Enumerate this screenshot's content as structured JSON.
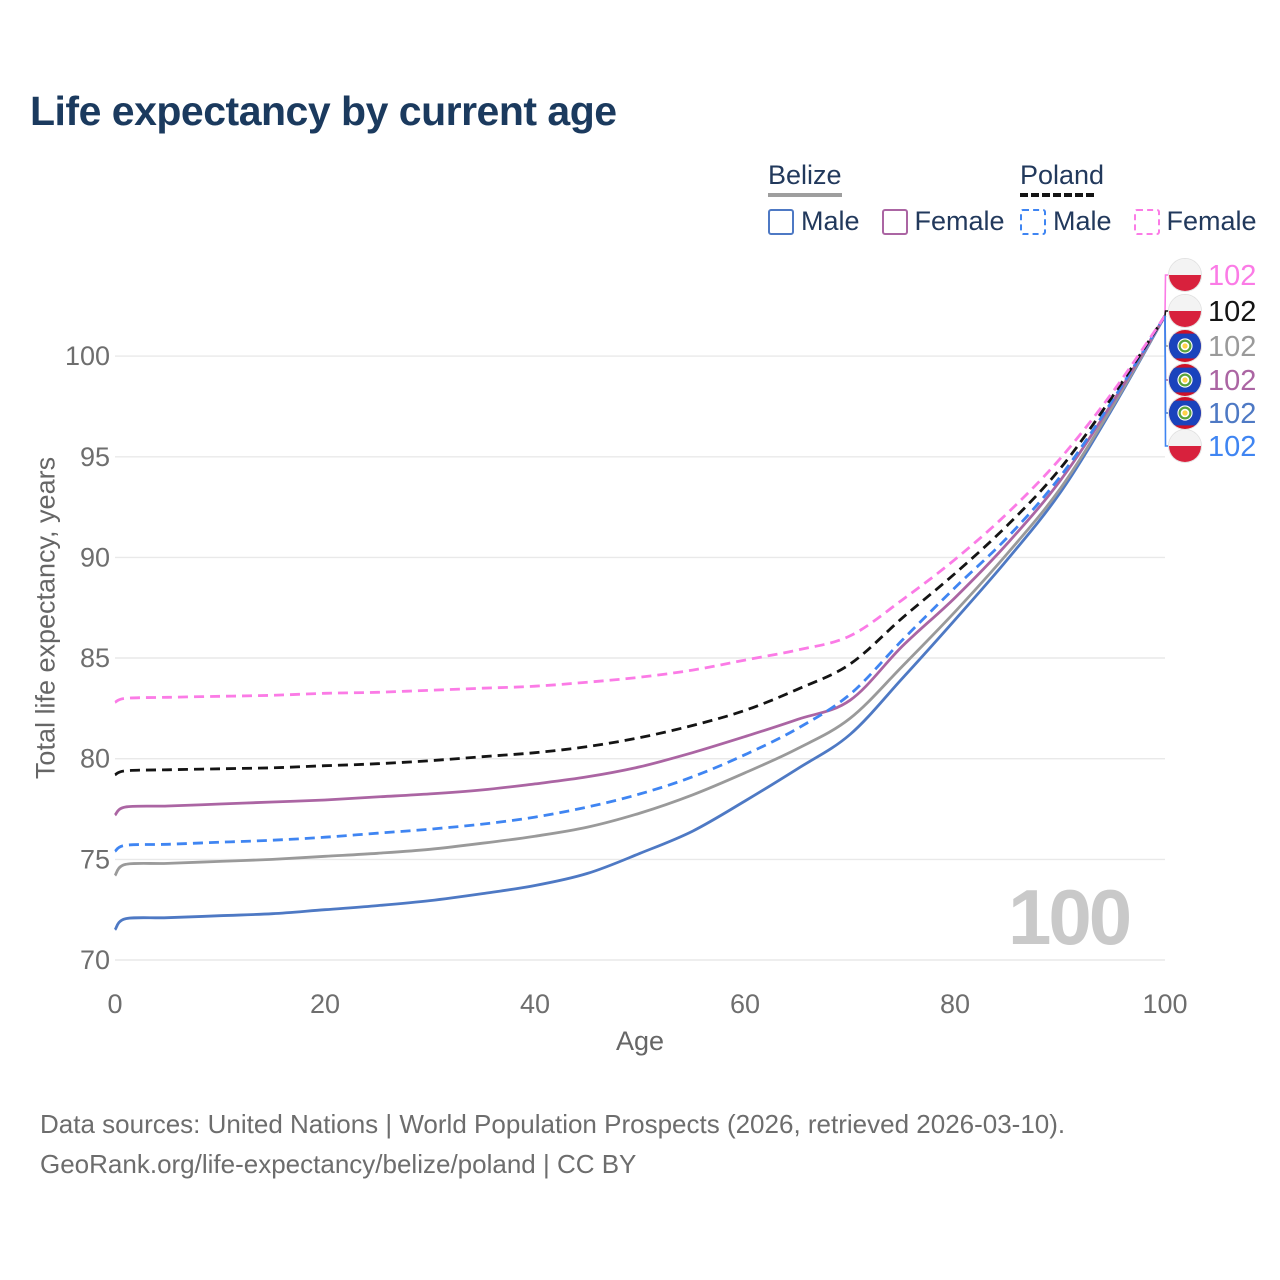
{
  "title": "Life expectancy by current age",
  "watermark_age": "100",
  "legend": {
    "groups": [
      {
        "country": "Belize",
        "line_style": "solid",
        "underline_color": "#9e9e9e",
        "male_label": "Male",
        "female_label": "Female",
        "male_color": "#4e79c4",
        "female_color": "#ab65a3"
      },
      {
        "country": "Poland",
        "line_style": "dashed",
        "underline_color": "#141414",
        "male_label": "Male",
        "female_label": "Female",
        "male_color": "#3f85f2",
        "female_color": "#fb7be6"
      }
    ]
  },
  "footer": {
    "sources_line": "Data sources: United Nations | World Population Prospects (2026, retrieved 2026-03-10).",
    "attribution_line": "GeoRank.org/life-expectancy/belize/poland | CC BY"
  },
  "chart_data": {
    "type": "line",
    "title": "Life expectancy by current age",
    "xlabel": "Age",
    "ylabel": "Total life expectancy, years",
    "x_ticks": [
      0,
      20,
      40,
      60,
      80,
      100
    ],
    "y_ticks": [
      70,
      75,
      80,
      85,
      90,
      95,
      100
    ],
    "xlim": [
      0,
      100
    ],
    "ylim": [
      69,
      103
    ],
    "grid": "horizontal",
    "legend_position": "top-right",
    "ages": [
      0,
      1,
      5,
      10,
      15,
      20,
      25,
      30,
      35,
      40,
      45,
      50,
      55,
      60,
      65,
      70,
      75,
      80,
      85,
      90,
      95,
      100
    ],
    "series": [
      {
        "id": "poland-female",
        "name": "Poland Female",
        "country": "Poland",
        "sex": "Female",
        "flag": "poland",
        "color": "#fb7be6",
        "dashed": true,
        "end_label": "102",
        "values": [
          82.8,
          83.0,
          83.05,
          83.1,
          83.15,
          83.25,
          83.3,
          83.4,
          83.5,
          83.6,
          83.8,
          84.05,
          84.4,
          84.9,
          85.4,
          86.1,
          87.9,
          89.9,
          92.2,
          94.9,
          98.2,
          102
        ]
      },
      {
        "id": "poland-total",
        "name": "Poland",
        "country": "Poland",
        "sex": "Both",
        "flag": "poland",
        "color": "#141414",
        "dashed": true,
        "end_label": "102",
        "values": [
          79.2,
          79.4,
          79.45,
          79.5,
          79.55,
          79.65,
          79.75,
          79.9,
          80.1,
          80.3,
          80.6,
          81.05,
          81.65,
          82.4,
          83.45,
          84.7,
          87.0,
          89.2,
          91.6,
          94.4,
          98.0,
          102
        ]
      },
      {
        "id": "belize-total",
        "name": "Belize",
        "country": "Belize",
        "sex": "Both",
        "flag": "belize",
        "color": "#9a9a9a",
        "dashed": false,
        "end_label": "102",
        "values": [
          74.2,
          74.75,
          74.8,
          74.9,
          75.0,
          75.15,
          75.3,
          75.5,
          75.8,
          76.15,
          76.6,
          77.3,
          78.2,
          79.3,
          80.5,
          82.0,
          84.6,
          87.3,
          90.2,
          93.4,
          97.5,
          102
        ]
      },
      {
        "id": "belize-female",
        "name": "Belize Female",
        "country": "Belize",
        "sex": "Female",
        "flag": "belize",
        "color": "#ab65a3",
        "dashed": false,
        "end_label": "102",
        "values": [
          77.2,
          77.6,
          77.65,
          77.75,
          77.85,
          77.95,
          78.1,
          78.25,
          78.45,
          78.75,
          79.1,
          79.6,
          80.3,
          81.1,
          81.95,
          82.9,
          85.6,
          88.0,
          90.7,
          93.8,
          97.7,
          102
        ]
      },
      {
        "id": "belize-male",
        "name": "Belize Male",
        "country": "Belize",
        "sex": "Male",
        "flag": "belize",
        "color": "#4e79c4",
        "dashed": false,
        "end_label": "102",
        "values": [
          71.5,
          72.05,
          72.1,
          72.2,
          72.3,
          72.5,
          72.7,
          72.95,
          73.3,
          73.7,
          74.3,
          75.3,
          76.4,
          77.9,
          79.5,
          81.2,
          84.0,
          86.9,
          89.9,
          93.2,
          97.4,
          102
        ]
      },
      {
        "id": "poland-male",
        "name": "Poland Male",
        "country": "Poland",
        "sex": "Male",
        "flag": "poland",
        "color": "#3f85f2",
        "dashed": true,
        "end_label": "102",
        "values": [
          75.4,
          75.7,
          75.75,
          75.85,
          75.95,
          76.1,
          76.3,
          76.5,
          76.75,
          77.1,
          77.6,
          78.25,
          79.1,
          80.2,
          81.5,
          83.2,
          85.9,
          88.5,
          91.0,
          94.0,
          97.8,
          102
        ]
      }
    ]
  }
}
